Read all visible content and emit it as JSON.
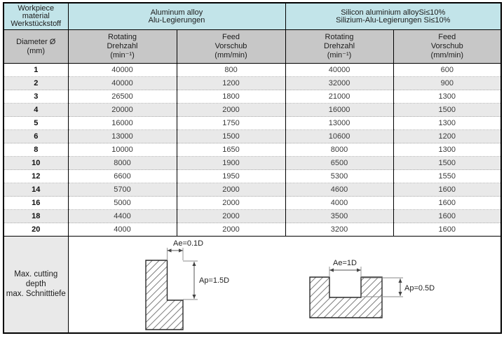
{
  "table": {
    "header": {
      "workpiece_lines": [
        "Workpiece",
        "material",
        "Werkstückstoff"
      ],
      "aluminum_lines": [
        "Aluminum alloy",
        "Alu-Legierungen"
      ],
      "silicon_lines": [
        "Silicon aluminium alloySi≤10%",
        "Silizium-Alu-Legierungen Si≤10%"
      ],
      "diameter_lines": [
        "Diameter Ø",
        "(mm)"
      ],
      "rotating_lines": [
        "Rotating",
        "Drehzahl",
        "(min⁻¹)"
      ],
      "feed_lines": [
        "Feed",
        "Vorschub",
        "(mm/min)"
      ]
    },
    "rows": [
      {
        "d": "1",
        "al_rpm": "40000",
        "al_feed": "800",
        "si_rpm": "40000",
        "si_feed": "600"
      },
      {
        "d": "2",
        "al_rpm": "40000",
        "al_feed": "1200",
        "si_rpm": "32000",
        "si_feed": "900"
      },
      {
        "d": "3",
        "al_rpm": "26500",
        "al_feed": "1800",
        "si_rpm": "21000",
        "si_feed": "1300"
      },
      {
        "d": "4",
        "al_rpm": "20000",
        "al_feed": "2000",
        "si_rpm": "16000",
        "si_feed": "1500"
      },
      {
        "d": "5",
        "al_rpm": "16000",
        "al_feed": "1750",
        "si_rpm": "13000",
        "si_feed": "1300"
      },
      {
        "d": "6",
        "al_rpm": "13000",
        "al_feed": "1500",
        "si_rpm": "10600",
        "si_feed": "1200"
      },
      {
        "d": "8",
        "al_rpm": "10000",
        "al_feed": "1650",
        "si_rpm": "8000",
        "si_feed": "1300"
      },
      {
        "d": "10",
        "al_rpm": "8000",
        "al_feed": "1900",
        "si_rpm": "6500",
        "si_feed": "1500"
      },
      {
        "d": "12",
        "al_rpm": "6600",
        "al_feed": "1950",
        "si_rpm": "5300",
        "si_feed": "1550"
      },
      {
        "d": "14",
        "al_rpm": "5700",
        "al_feed": "2000",
        "si_rpm": "4600",
        "si_feed": "1600"
      },
      {
        "d": "16",
        "al_rpm": "5000",
        "al_feed": "2000",
        "si_rpm": "4000",
        "si_feed": "1600"
      },
      {
        "d": "18",
        "al_rpm": "4400",
        "al_feed": "2000",
        "si_rpm": "3500",
        "si_feed": "1600"
      },
      {
        "d": "20",
        "al_rpm": "4000",
        "al_feed": "2000",
        "si_rpm": "3200",
        "si_feed": "1600"
      }
    ],
    "footer": {
      "label_lines": [
        "Max. cutting",
        "depth",
        "max. Schnitttiefe"
      ],
      "diagram_left": {
        "ae_label": "Ae=0.1D",
        "ap_label": "Ap=1.5D"
      },
      "diagram_right": {
        "ae_label": "Ae=1D",
        "ap_label": "Ap=0.5D"
      }
    }
  },
  "colors": {
    "header_blue": "#c2e4e9",
    "header_gray": "#c7c7c7",
    "row_alt_gray": "#e9e9e9",
    "border_black": "#000000",
    "value_text": "#3a3a3a"
  }
}
